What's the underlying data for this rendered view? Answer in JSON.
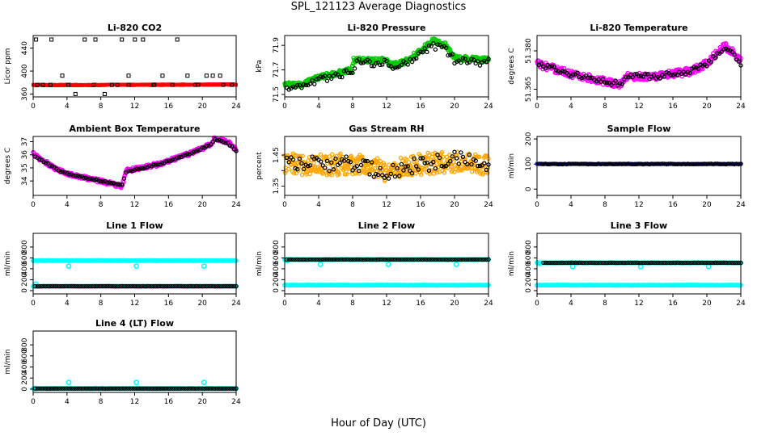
{
  "figure": {
    "title": "SPL_121123  Average Diagnostics",
    "xlabel": "Hour of Day (UTC)"
  },
  "chart_data": [
    {
      "type": "scatter",
      "title": "Li-820 CO2",
      "ylabel": "Licor ppm",
      "xlim": [
        0,
        24
      ],
      "ylim": [
        355,
        462
      ],
      "xticks": [
        0,
        4,
        8,
        12,
        16,
        20,
        24
      ],
      "yticks": [
        360,
        400,
        440
      ],
      "colors": {
        "raw": "#ff0000",
        "avg": "#000000"
      },
      "raw": {
        "pattern": "flat",
        "start": 375.5,
        "end": 376.5,
        "noise": 1.0
      },
      "avg": {
        "pattern": "band",
        "xstart": 0.25,
        "xend": 24,
        "step": 1,
        "levels": [
          360,
          376,
          392,
          455
        ],
        "weights": [
          0.18,
          0.42,
          0.15,
          0.25
        ]
      }
    },
    {
      "type": "scatter",
      "title": "Li-820 Pressure",
      "ylabel": "kPa",
      "xlim": [
        0,
        24
      ],
      "ylim": [
        71.48,
        71.98
      ],
      "xticks": [
        0,
        4,
        8,
        12,
        16,
        20,
        24
      ],
      "yticks": [
        71.5,
        71.7,
        71.9
      ],
      "colors": {
        "raw": "#00cc00",
        "avg": "#000000"
      },
      "raw": {
        "pattern": "curve",
        "curve": [
          [
            0,
            71.58
          ],
          [
            2,
            71.58
          ],
          [
            4,
            71.64
          ],
          [
            7.9,
            71.7
          ],
          [
            8.1,
            71.78
          ],
          [
            12,
            71.78
          ],
          [
            12.5,
            71.74
          ],
          [
            14,
            71.76
          ],
          [
            16,
            71.86
          ],
          [
            17.5,
            71.94
          ],
          [
            19,
            71.9
          ],
          [
            20,
            71.8
          ],
          [
            24,
            71.78
          ]
        ],
        "noise": 0.02
      },
      "avg": {
        "pattern": "curve",
        "xstart": 0.25,
        "xend": 24,
        "step": 0.25,
        "curve": [
          [
            0,
            71.55
          ],
          [
            2,
            71.55
          ],
          [
            4,
            71.62
          ],
          [
            8,
            71.68
          ],
          [
            8.5,
            71.76
          ],
          [
            12,
            71.76
          ],
          [
            13,
            71.7
          ],
          [
            16,
            71.82
          ],
          [
            17.5,
            71.9
          ],
          [
            19,
            71.86
          ],
          [
            20,
            71.78
          ],
          [
            24,
            71.76
          ]
        ],
        "noise": 0.03
      }
    },
    {
      "type": "scatter",
      "title": "Li-820 Temperature",
      "ylabel": "degrees C",
      "xlim": [
        0,
        24
      ],
      "ylim": [
        51.362,
        51.386
      ],
      "xticks": [
        0,
        4,
        8,
        12,
        16,
        20,
        24
      ],
      "yticks": [
        51.365,
        51.38
      ],
      "ytick_labels": [
        "51.365",
        "51.380"
      ],
      "colors": {
        "raw": "#ff00ff",
        "avg": "#000000"
      },
      "raw": {
        "pattern": "curve",
        "curve": [
          [
            0,
            51.375
          ],
          [
            4,
            51.371
          ],
          [
            8,
            51.368
          ],
          [
            10,
            51.367
          ],
          [
            10.5,
            51.37
          ],
          [
            14,
            51.37
          ],
          [
            18,
            51.372
          ],
          [
            20,
            51.375
          ],
          [
            22,
            51.382
          ],
          [
            23,
            51.38
          ],
          [
            24,
            51.376
          ]
        ],
        "noise": 0.0015
      },
      "avg": {
        "pattern": "curve",
        "xstart": 0.25,
        "xend": 24,
        "step": 0.25,
        "curve": [
          [
            0,
            51.375
          ],
          [
            4,
            51.371
          ],
          [
            8,
            51.368
          ],
          [
            10,
            51.367
          ],
          [
            10.5,
            51.37
          ],
          [
            14,
            51.37
          ],
          [
            18,
            51.372
          ],
          [
            20,
            51.375
          ],
          [
            22,
            51.381
          ],
          [
            23,
            51.379
          ],
          [
            24,
            51.375
          ]
        ],
        "noise": 0.001
      }
    },
    {
      "type": "scatter",
      "title": "Ambient Box Temperature",
      "ylabel": "degrees C",
      "xlim": [
        0,
        24
      ],
      "ylim": [
        32.9,
        37.4
      ],
      "xticks": [
        0,
        4,
        8,
        12,
        16,
        20,
        24
      ],
      "yticks": [
        34,
        35,
        36,
        37
      ],
      "colors": {
        "raw": "#ff00ff",
        "avg": "#000000"
      },
      "raw": {
        "pattern": "curve",
        "curve": [
          [
            0,
            36.1
          ],
          [
            1,
            35.6
          ],
          [
            3,
            34.8
          ],
          [
            5,
            34.4
          ],
          [
            8,
            34.0
          ],
          [
            10.5,
            33.6
          ],
          [
            11,
            34.8
          ],
          [
            15,
            35.3
          ],
          [
            19,
            36.2
          ],
          [
            21,
            36.8
          ],
          [
            21.5,
            37.3
          ],
          [
            23,
            37.0
          ],
          [
            24,
            36.4
          ]
        ],
        "noise": 0.15
      },
      "avg": {
        "pattern": "curve",
        "xstart": 0.25,
        "xend": 24,
        "step": 0.25,
        "curve": [
          [
            0,
            36.0
          ],
          [
            1,
            35.6
          ],
          [
            3,
            34.8
          ],
          [
            5,
            34.4
          ],
          [
            8,
            34.0
          ],
          [
            10.5,
            33.7
          ],
          [
            11,
            34.7
          ],
          [
            15,
            35.3
          ],
          [
            19,
            36.2
          ],
          [
            21,
            36.8
          ],
          [
            21.5,
            37.2
          ],
          [
            23,
            36.9
          ],
          [
            24,
            36.3
          ]
        ],
        "noise": 0.05
      }
    },
    {
      "type": "scatter",
      "title": "Gas Stream RH",
      "ylabel": "percent",
      "xlim": [
        0,
        24
      ],
      "ylim": [
        1.32,
        1.51
      ],
      "xticks": [
        0,
        4,
        8,
        12,
        16,
        20,
        24
      ],
      "yticks": [
        1.35,
        1.4,
        1.45
      ],
      "ytick_labels": [
        "1.35",
        "",
        "1.45"
      ],
      "colors": {
        "raw": "#ffa500",
        "avg": "#000000"
      },
      "raw": {
        "pattern": "curve",
        "curve": [
          [
            0,
            1.42
          ],
          [
            4,
            1.42
          ],
          [
            8,
            1.42
          ],
          [
            12,
            1.4
          ],
          [
            16,
            1.42
          ],
          [
            20,
            1.43
          ],
          [
            24,
            1.42
          ]
        ],
        "noise": 0.035
      },
      "avg": {
        "pattern": "curve",
        "xstart": 0.25,
        "xend": 24,
        "step": 0.25,
        "curve": [
          [
            0,
            1.42
          ],
          [
            4,
            1.42
          ],
          [
            8,
            1.42
          ],
          [
            12,
            1.39
          ],
          [
            16,
            1.42
          ],
          [
            20,
            1.44
          ],
          [
            24,
            1.42
          ]
        ],
        "noise": 0.025
      }
    },
    {
      "type": "scatter",
      "title": "Sample Flow",
      "ylabel": "ml/min",
      "xlim": [
        0,
        24
      ],
      "ylim": [
        -25,
        210
      ],
      "xticks": [
        0,
        4,
        8,
        12,
        16,
        20,
        24
      ],
      "yticks": [
        0,
        100,
        200
      ],
      "colors": {
        "raw": "#0000ff",
        "avg": "#000000"
      },
      "raw": {
        "pattern": "flat",
        "start": 100,
        "end": 100,
        "noise": 1.5
      },
      "avg": {
        "pattern": "curve",
        "xstart": 0.25,
        "xend": 24,
        "step": 0.25,
        "curve": [
          [
            0,
            100
          ],
          [
            24,
            100
          ]
        ],
        "noise": 1
      }
    },
    {
      "type": "scatter",
      "title": "Line 1 Flow",
      "ylabel": "ml/min",
      "xlim": [
        0,
        24
      ],
      "ylim": [
        -60,
        1050
      ],
      "xticks": [
        0,
        4,
        8,
        12,
        16,
        20,
        24
      ],
      "yticks": [
        0,
        200,
        400,
        600,
        800
      ],
      "colors": {
        "raw": "#00ffff",
        "avg": "#000000"
      },
      "raw": {
        "pattern": "twolevel",
        "main": [
          0,
          24,
          550
        ],
        "secondary": [
          0,
          24,
          80
        ],
        "dips": [
          [
            0.3,
            120
          ],
          [
            4.2,
            450
          ],
          [
            12.2,
            450
          ],
          [
            20.2,
            450
          ]
        ],
        "noise": 3
      },
      "avg": {
        "pattern": "curve",
        "xstart": 0.25,
        "xend": 24,
        "step": 0.25,
        "curve": [
          [
            0,
            80
          ],
          [
            24,
            80
          ]
        ],
        "noise": 2
      }
    },
    {
      "type": "scatter",
      "title": "Line 2 Flow",
      "ylabel": "ml/min",
      "xlim": [
        0,
        24
      ],
      "ylim": [
        -60,
        1050
      ],
      "xticks": [
        0,
        4,
        8,
        12,
        16,
        20,
        24
      ],
      "yticks": [
        0,
        200,
        400,
        600,
        800
      ],
      "colors": {
        "raw": "#00ffff",
        "avg": "#000000"
      },
      "raw": {
        "pattern": "twolevel",
        "main": [
          0,
          24,
          100
        ],
        "secondary": [
          0,
          24,
          570
        ],
        "dips": [
          [
            0.3,
            550
          ],
          [
            4.2,
            480
          ],
          [
            12.2,
            480
          ],
          [
            20.2,
            480
          ]
        ],
        "noise": 3
      },
      "avg": {
        "pattern": "curve",
        "xstart": 0.25,
        "xend": 24,
        "step": 0.25,
        "curve": [
          [
            0,
            570
          ],
          [
            24,
            570
          ]
        ],
        "noise": 2
      }
    },
    {
      "type": "scatter",
      "title": "Line 3 Flow",
      "ylabel": "ml/min",
      "xlim": [
        0,
        24
      ],
      "ylim": [
        -60,
        1050
      ],
      "xticks": [
        0,
        4,
        8,
        12,
        16,
        20,
        24
      ],
      "yticks": [
        0,
        200,
        400,
        600,
        800
      ],
      "colors": {
        "raw": "#00ffff",
        "avg": "#000000"
      },
      "raw": {
        "pattern": "twolevel",
        "main": [
          0,
          24,
          100
        ],
        "secondary": [
          0,
          24,
          510
        ],
        "dips": [
          [
            0.3,
            500
          ],
          [
            4.2,
            440
          ],
          [
            12.2,
            440
          ],
          [
            20.2,
            440
          ]
        ],
        "noise": 3
      },
      "avg": {
        "pattern": "curve",
        "xstart": 0.75,
        "xend": 24,
        "step": 0.25,
        "curve": [
          [
            0,
            510
          ],
          [
            24,
            510
          ]
        ],
        "noise": 2
      }
    },
    {
      "type": "scatter",
      "title": "Line 4 (LT) Flow",
      "ylabel": "ml/min",
      "xlim": [
        0,
        24
      ],
      "ylim": [
        -60,
        1050
      ],
      "xticks": [
        0,
        4,
        8,
        12,
        16,
        20,
        24
      ],
      "yticks": [
        0,
        200,
        400,
        600,
        800
      ],
      "colors": {
        "raw": "#00ffff",
        "avg": "#000000"
      },
      "raw": {
        "pattern": "twolevel",
        "main": [
          0,
          24,
          10
        ],
        "secondary": [
          0,
          0,
          10
        ],
        "dips": [
          [
            0.3,
            10
          ],
          [
            4.2,
            120
          ],
          [
            12.2,
            120
          ],
          [
            20.2,
            120
          ]
        ],
        "noise": 2
      },
      "avg": {
        "pattern": "curve",
        "xstart": 0.25,
        "xend": 24,
        "step": 0.25,
        "curve": [
          [
            0,
            10
          ],
          [
            24,
            10
          ]
        ],
        "noise": 1
      }
    }
  ]
}
